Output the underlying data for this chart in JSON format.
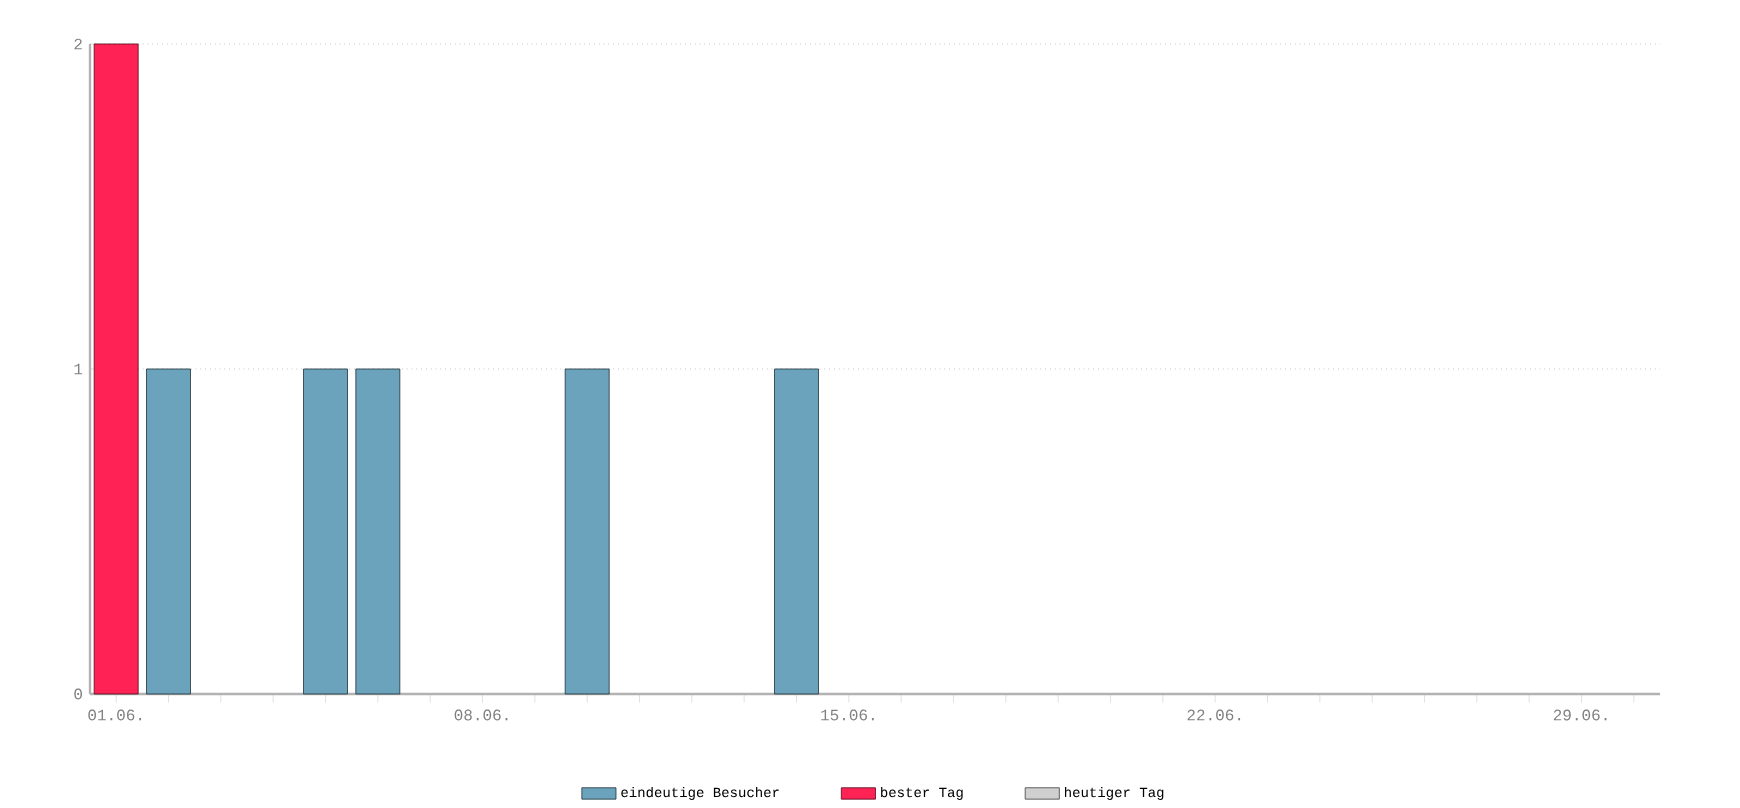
{
  "chart_data": {
    "type": "bar",
    "categories": [
      "01.06.",
      null,
      null,
      null,
      null,
      null,
      null,
      "08.06.",
      null,
      null,
      null,
      null,
      null,
      null,
      "15.06.",
      null,
      null,
      null,
      null,
      null,
      null,
      "22.06.",
      null,
      null,
      null,
      null,
      null,
      null,
      "29.06.",
      null
    ],
    "series": [
      {
        "name": "eindeutige Besucher",
        "color": "#6aa3bb",
        "values": [
          null,
          1,
          null,
          null,
          1,
          1,
          null,
          null,
          null,
          1,
          null,
          null,
          null,
          1,
          null,
          null,
          null,
          null,
          null,
          null,
          null,
          null,
          null,
          null,
          null,
          null,
          null,
          null,
          null,
          null
        ]
      },
      {
        "name": "bester Tag",
        "color": "#ff2255",
        "values": [
          2,
          null,
          null,
          null,
          null,
          null,
          null,
          null,
          null,
          null,
          null,
          null,
          null,
          null,
          null,
          null,
          null,
          null,
          null,
          null,
          null,
          null,
          null,
          null,
          null,
          null,
          null,
          null,
          null,
          null
        ]
      },
      {
        "name": "heutiger Tag",
        "color": "#d0d0d0",
        "values": [
          null,
          null,
          null,
          null,
          null,
          null,
          null,
          null,
          null,
          null,
          null,
          null,
          null,
          null,
          null,
          null,
          null,
          null,
          null,
          null,
          null,
          null,
          null,
          null,
          null,
          null,
          null,
          null,
          null,
          null
        ]
      }
    ],
    "ylim": [
      0,
      2
    ],
    "yticks": [
      0,
      1,
      2
    ],
    "grid": "y",
    "legend": "bottom"
  }
}
